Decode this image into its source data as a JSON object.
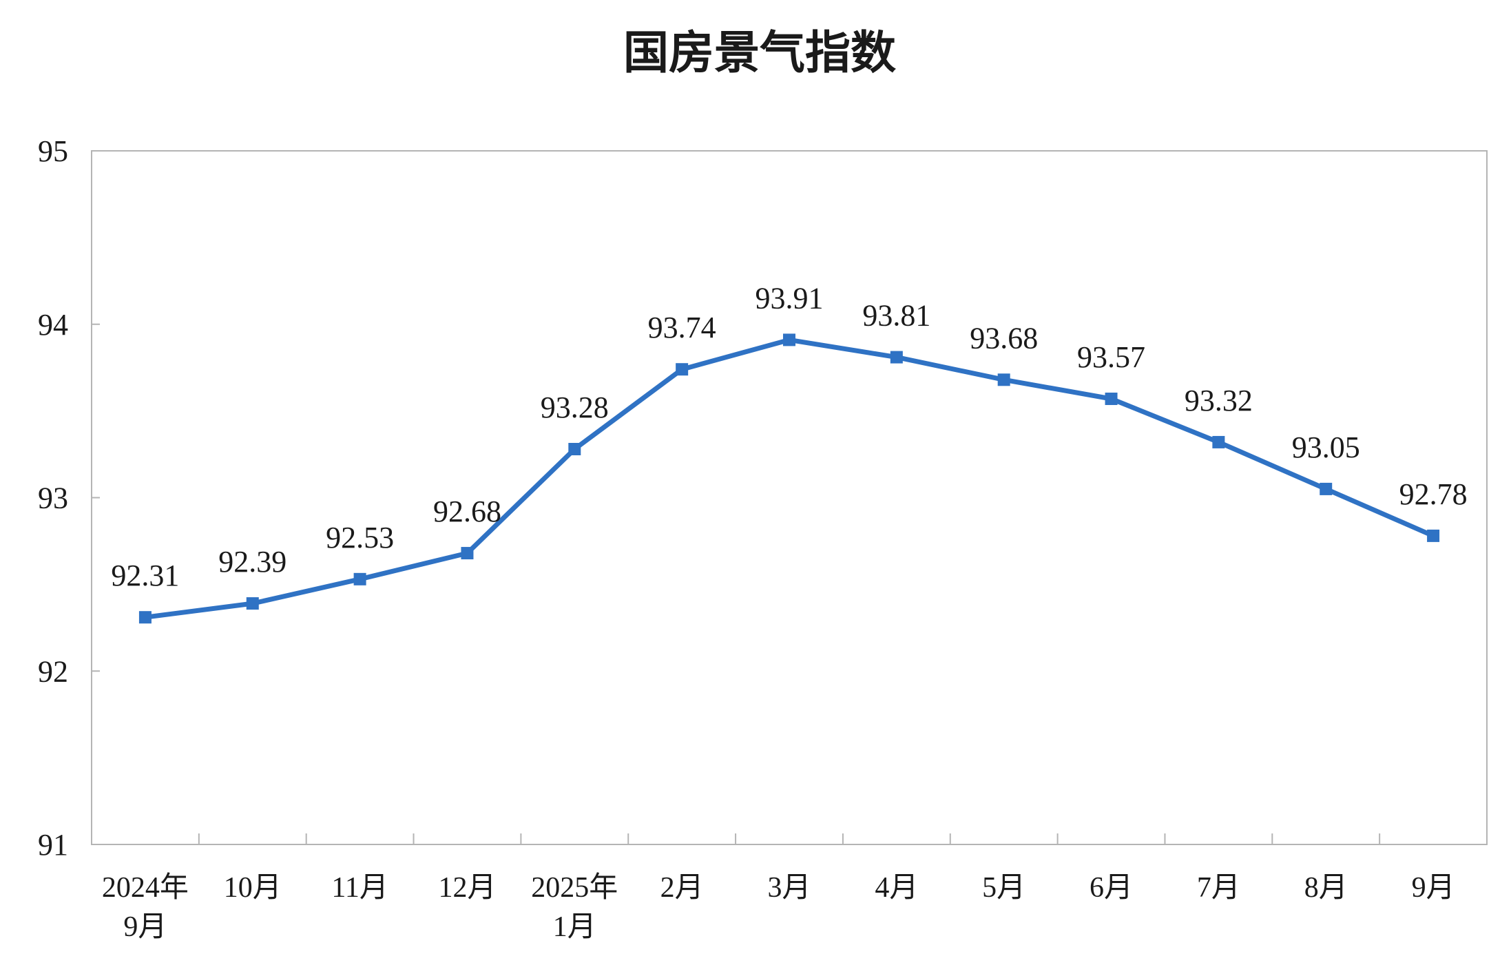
{
  "chart_data": {
    "type": "line",
    "title": "国房景气指数",
    "xlabel": "",
    "ylabel": "",
    "ylim": [
      91,
      95
    ],
    "yticks": [
      "91",
      "92",
      "93",
      "94",
      "95"
    ],
    "grid": false,
    "categories": [
      [
        "2024年",
        "9月"
      ],
      [
        "10月"
      ],
      [
        "11月"
      ],
      [
        "12月"
      ],
      [
        "2025年",
        "1月"
      ],
      [
        "2月"
      ],
      [
        "3月"
      ],
      [
        "4月"
      ],
      [
        "5月"
      ],
      [
        "6月"
      ],
      [
        "7月"
      ],
      [
        "8月"
      ],
      [
        "9月"
      ]
    ],
    "series": [
      {
        "values": [
          92.31,
          92.39,
          92.53,
          92.68,
          93.28,
          93.74,
          93.91,
          93.81,
          93.68,
          93.57,
          93.32,
          93.05,
          92.78
        ],
        "labels": [
          "92.31",
          "92.39",
          "92.53",
          "92.68",
          "93.28",
          "93.74",
          "93.91",
          "93.81",
          "93.68",
          "93.57",
          "93.32",
          "93.05",
          "92.78"
        ],
        "color": "#2f72c4"
      }
    ]
  }
}
